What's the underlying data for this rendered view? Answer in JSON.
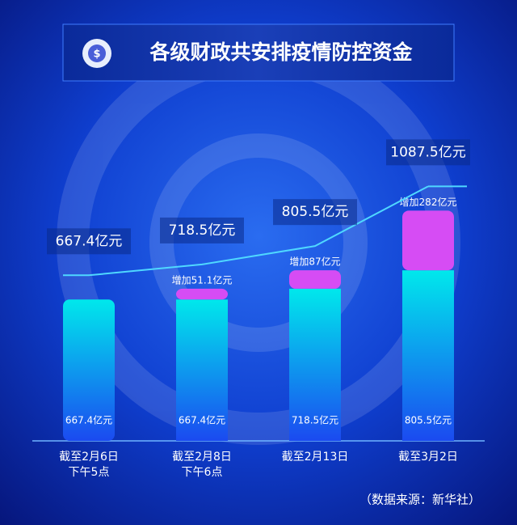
{
  "chart_data": {
    "type": "bar",
    "stacked": true,
    "title": "各级财政共安排疫情防控资金",
    "categories": [
      [
        "截至2月6日",
        "下午5点"
      ],
      [
        "截至2月8日",
        "下午6点"
      ],
      [
        "截至2月13日"
      ],
      [
        "截至3月2日"
      ]
    ],
    "series": [
      {
        "color": "#00e6ea",
        "values": [
          667.4,
          667.4,
          718.5,
          805.5
        ],
        "value_labels": [
          "667.4亿元",
          "667.4亿元",
          "718.5亿元",
          "805.5亿元"
        ]
      },
      {
        "color": "#d64cf4",
        "values": [
          null,
          51.1,
          87,
          282
        ],
        "value_labels": [
          null,
          "增加51.1亿元",
          "增加87亿元",
          "增加282亿元"
        ]
      }
    ],
    "totals": {
      "values": [
        667.4,
        718.5,
        805.5,
        1087.5
      ],
      "value_labels": [
        "667.4亿元",
        "718.5亿元",
        "805.5亿元",
        "1087.5亿元"
      ]
    },
    "ylim": [
      0,
      1700
    ],
    "source": "（数据来源：新华社）"
  }
}
